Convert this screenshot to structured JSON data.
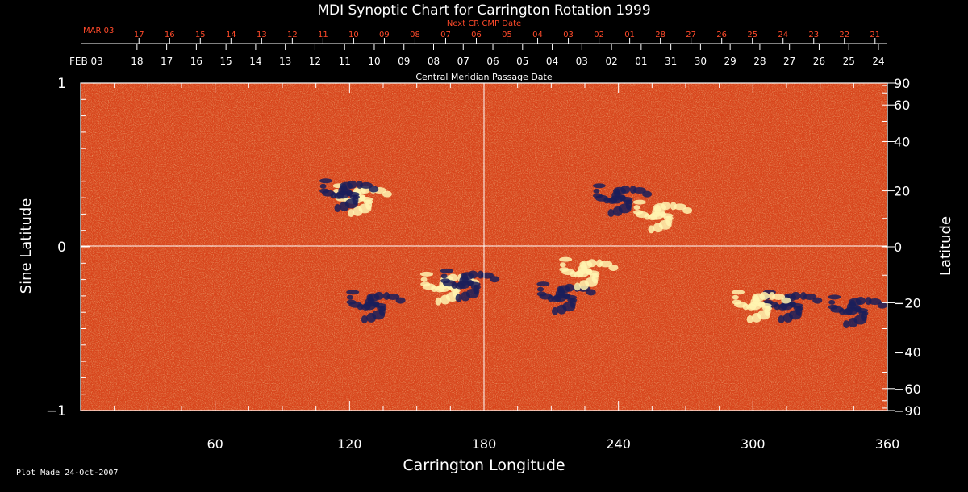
{
  "chart_data": {
    "type": "heatmap",
    "title": "MDI Synoptic Chart for Carrington Rotation 1999",
    "xlabel": "Carrington Longitude",
    "ylabel_left": "Sine Latitude",
    "ylabel_right": "Latitude",
    "xlim": [
      0,
      360
    ],
    "ylim": [
      -1,
      1
    ],
    "x_ticks": [
      60,
      120,
      180,
      240,
      300,
      360
    ],
    "y_left_ticks": [
      {
        "value": 1,
        "label": "1"
      },
      {
        "value": 0,
        "label": "0"
      },
      {
        "value": -1,
        "label": "−1"
      }
    ],
    "y_right_ticks": [
      {
        "deg": 90,
        "label": "90"
      },
      {
        "deg": 60,
        "label": "60"
      },
      {
        "deg": 40,
        "label": "40"
      },
      {
        "deg": 20,
        "label": "20"
      },
      {
        "deg": 0,
        "label": "0"
      },
      {
        "deg": -20,
        "label": "−20"
      },
      {
        "deg": -40,
        "label": "−40"
      },
      {
        "deg": -60,
        "label": "−60"
      },
      {
        "deg": -90,
        "label": "−90"
      }
    ],
    "cmp_axis": {
      "title": "Central Meridian Passage Date",
      "start_label": "FEB 03",
      "labels": [
        "18",
        "17",
        "16",
        "15",
        "14",
        "13",
        "12",
        "11",
        "10",
        "09",
        "08",
        "07",
        "06",
        "05",
        "04",
        "03",
        "02",
        "01",
        "31",
        "30",
        "29",
        "28",
        "27",
        "26",
        "25",
        "24"
      ]
    },
    "next_cr_axis": {
      "title": "Next CR CMP Date",
      "start_label": "MAR 03",
      "labels": [
        "17",
        "16",
        "15",
        "14",
        "13",
        "12",
        "11",
        "10",
        "09",
        "08",
        "07",
        "06",
        "05",
        "04",
        "03",
        "02",
        "01",
        "28",
        "27",
        "26",
        "25",
        "24",
        "23",
        "22",
        "21"
      ]
    },
    "grid_lines": {
      "vertical_longitude": 180,
      "horizontal_sine_latitude": 0
    },
    "colorscale": {
      "negative": "#1a1f5a",
      "background": "#e0501a",
      "positive": "#fff4b0"
    },
    "features": [
      {
        "lon": 124,
        "sinlat": 0.3,
        "polarity": "positive"
      },
      {
        "lon": 118,
        "sinlat": 0.33,
        "polarity": "negative"
      },
      {
        "lon": 163,
        "sinlat": -0.24,
        "polarity": "positive"
      },
      {
        "lon": 172,
        "sinlat": -0.22,
        "polarity": "negative"
      },
      {
        "lon": 130,
        "sinlat": -0.35,
        "polarity": "negative"
      },
      {
        "lon": 215,
        "sinlat": -0.3,
        "polarity": "negative"
      },
      {
        "lon": 225,
        "sinlat": -0.15,
        "polarity": "positive"
      },
      {
        "lon": 316,
        "sinlat": -0.35,
        "polarity": "negative"
      },
      {
        "lon": 302,
        "sinlat": -0.35,
        "polarity": "positive"
      },
      {
        "lon": 345,
        "sinlat": -0.38,
        "polarity": "negative"
      },
      {
        "lon": 240,
        "sinlat": 0.3,
        "polarity": "negative"
      },
      {
        "lon": 258,
        "sinlat": 0.2,
        "polarity": "positive"
      }
    ]
  },
  "footer": {
    "plot_made": "Plot Made 24-Oct-2007"
  }
}
